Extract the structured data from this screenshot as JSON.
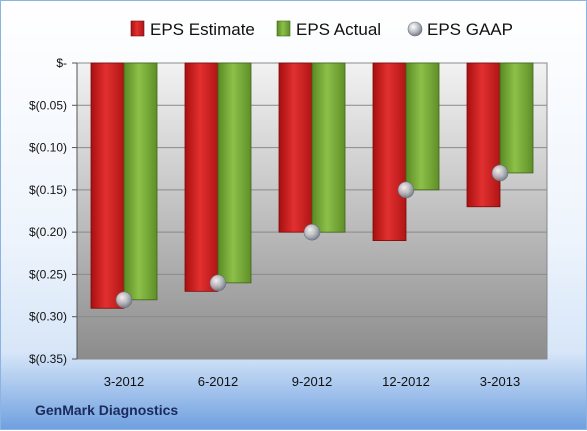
{
  "company": "GenMark Diagnostics",
  "chart_data": {
    "type": "bar",
    "categories": [
      "3-2012",
      "6-2012",
      "9-2012",
      "12-2012",
      "3-2013"
    ],
    "series": [
      {
        "name": "EPS Estimate",
        "values": [
          -0.29,
          -0.27,
          -0.2,
          -0.21,
          -0.17
        ],
        "color": "#d42020"
      },
      {
        "name": "EPS Actual",
        "values": [
          -0.28,
          -0.26,
          -0.2,
          -0.15,
          -0.13
        ],
        "color": "#76a83a"
      },
      {
        "name": "EPS GAAP",
        "values": [
          -0.28,
          -0.26,
          -0.2,
          -0.15,
          -0.13
        ],
        "color": "#b8bcc4",
        "marker": "sphere"
      }
    ],
    "yticks": [
      0,
      -0.05,
      -0.1,
      -0.15,
      -0.2,
      -0.25,
      -0.3,
      -0.35
    ],
    "ytick_labels": [
      "$-",
      "$(0.05)",
      "$(0.10)",
      "$(0.15)",
      "$(0.20)",
      "$(0.25)",
      "$(0.30)",
      "$(0.35)"
    ],
    "ylim": [
      -0.35,
      0
    ],
    "grid": true,
    "legend_position": "top"
  }
}
